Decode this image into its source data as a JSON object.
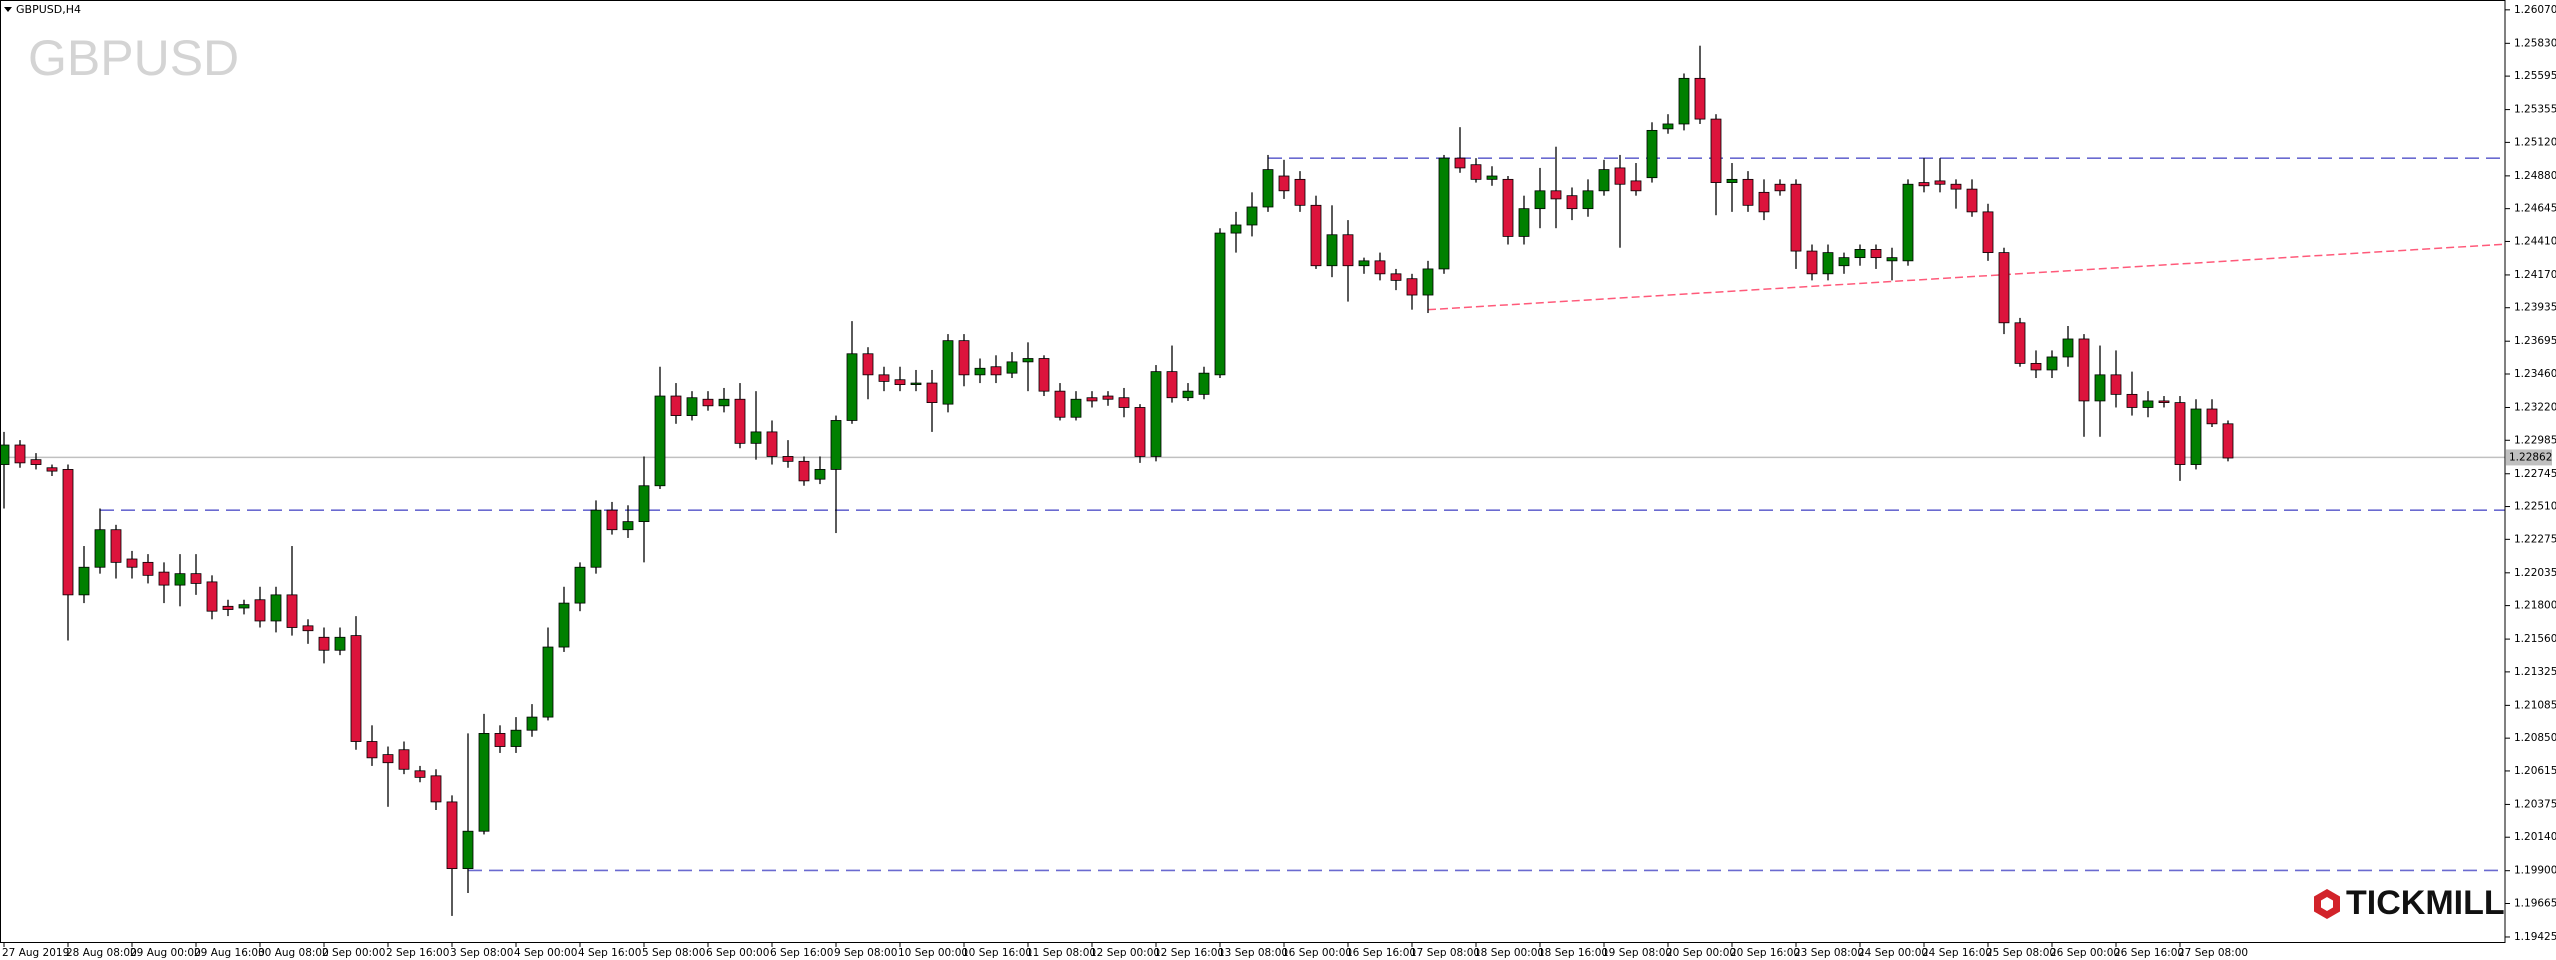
{
  "chart_data": {
    "type": "candlestick",
    "title": "GBPUSD,H4",
    "watermark": "GBPUSD",
    "brand": "TICKMILL",
    "categories": [
      "27 Aug 2019",
      null,
      null,
      null,
      "28 Aug 08:00",
      null,
      null,
      null,
      "29 Aug 00:00",
      null,
      null,
      null,
      "29 Aug 16:00",
      null,
      null,
      null,
      "30 Aug 08:00",
      null,
      null,
      null,
      "2 Sep 00:00",
      null,
      null,
      null,
      "2 Sep 16:00",
      null,
      null,
      null,
      "3 Sep 08:00",
      null,
      null,
      null,
      "4 Sep 00:00",
      null,
      null,
      null,
      "4 Sep 16:00",
      null,
      null,
      null,
      "5 Sep 08:00",
      null,
      null,
      null,
      "6 Sep 00:00",
      null,
      null,
      null,
      "6 Sep 16:00",
      null,
      null,
      null,
      "9 Sep 08:00",
      null,
      null,
      null,
      "10 Sep 00:00",
      null,
      null,
      null,
      "10 Sep 16:00",
      null,
      null,
      null,
      "11 Sep 08:00",
      null,
      null,
      null,
      "12 Sep 00:00",
      null,
      null,
      null,
      "12 Sep 16:00",
      null,
      null,
      null,
      "13 Sep 08:00",
      null,
      null,
      null,
      "16 Sep 00:00",
      null,
      null,
      null,
      "16 Sep 16:00",
      null,
      null,
      null,
      "17 Sep 08:00",
      null,
      null,
      null,
      "18 Sep 00:00",
      null,
      null,
      null,
      "18 Sep 16:00",
      null,
      null,
      null,
      "19 Sep 08:00",
      null,
      null,
      null,
      "20 Sep 00:00",
      null,
      null,
      null,
      "20 Sep 16:00",
      null,
      null,
      null,
      "23 Sep 08:00",
      null,
      null,
      null,
      "24 Sep 00:00",
      null,
      null,
      null,
      "24 Sep 16:00",
      null,
      null,
      null,
      "25 Sep 08:00",
      null,
      null,
      null,
      "26 Sep 00:00",
      null,
      null,
      null,
      "26 Sep 16:00",
      null,
      null,
      null,
      "27 Sep 08:00",
      null,
      null,
      null
    ],
    "open": [
      1.22811,
      1.22951,
      1.22846,
      1.22788,
      1.22776,
      1.21877,
      1.22075,
      1.22344,
      1.22134,
      1.2211,
      1.2204,
      1.21947,
      1.22029,
      1.2197,
      1.21795,
      1.21783,
      1.21842,
      1.2169,
      1.21877,
      1.21655,
      1.21573,
      1.2148,
      1.21585,
      1.20826,
      1.20732,
      1.20767,
      1.20616,
      1.2058,
      1.20393,
      1.19915,
      1.20183,
      1.20884,
      1.2079,
      1.20907,
      1.21001,
      1.21503,
      1.21818,
      1.22075,
      1.22484,
      1.22344,
      1.22402,
      1.22659,
      1.23302,
      1.23162,
      1.23279,
      1.23232,
      1.23279,
      1.22963,
      1.23045,
      1.22869,
      1.22834,
      1.22706,
      1.22776,
      1.23127,
      1.23605,
      1.23454,
      1.23419,
      1.23384,
      1.23395,
      1.23244,
      1.23699,
      1.23454,
      1.23512,
      1.23466,
      1.23547,
      1.23571,
      1.23337,
      1.2315,
      1.2329,
      1.23302,
      1.2329,
      1.2322,
      1.22869,
      1.23477,
      1.2329,
      1.23314,
      1.23454,
      1.2447,
      1.24528,
      1.24657,
      1.24879,
      1.24855,
      1.24669,
      1.24236,
      1.24458,
      1.24236,
      1.24271,
      1.24178,
      1.24143,
      1.24026,
      1.24213,
      1.25007,
      1.2496,
      1.24855,
      1.24855,
      1.24446,
      1.24645,
      1.24773,
      1.24738,
      1.24645,
      1.24773,
      1.24937,
      1.24844,
      1.24867,
      1.25217,
      1.25252,
      1.25579,
      1.25287,
      1.24832,
      1.24855,
      1.24762,
      1.2482,
      1.2482,
      1.24341,
      1.24178,
      1.24236,
      1.24294,
      1.24353,
      1.24271,
      1.24271,
      1.24832,
      1.24844,
      1.2482,
      1.24785,
      1.24622,
      1.2433,
      1.23827,
      1.23536,
      1.23489,
      1.23582,
      1.23711,
      1.23267,
      1.23454,
      1.23314,
      1.2322,
      1.23267,
      1.23255,
      1.22811,
      1.23209,
      1.23103
    ],
    "high": [
      1.23045,
      1.22986,
      1.22893,
      1.22811,
      1.22811,
      1.22227,
      1.22496,
      1.22379,
      1.22192,
      1.22169,
      1.2211,
      1.22169,
      1.22169,
      1.22017,
      1.21842,
      1.21842,
      1.21935,
      1.21935,
      1.22227,
      1.21702,
      1.21643,
      1.21643,
      1.21725,
      1.20942,
      1.2079,
      1.20826,
      1.20651,
      1.20627,
      1.2044,
      1.20884,
      1.21024,
      1.20942,
      1.21001,
      1.21094,
      1.21643,
      1.21935,
      1.2211,
      1.22554,
      1.22543,
      1.22519,
      1.22869,
      1.23512,
      1.23395,
      1.23337,
      1.23337,
      1.2336,
      1.23395,
      1.23337,
      1.23127,
      1.22986,
      1.22869,
      1.22869,
      1.23162,
      1.23839,
      1.23652,
      1.23512,
      1.23512,
      1.23489,
      1.23489,
      1.23746,
      1.23746,
      1.23571,
      1.23594,
      1.23617,
      1.23687,
      1.23594,
      1.23395,
      1.23337,
      1.23337,
      1.23337,
      1.2336,
      1.23244,
      1.23524,
      1.23664,
      1.23395,
      1.23512,
      1.24505,
      1.24622,
      1.24762,
      1.2503,
      1.24995,
      1.24914,
      1.24738,
      1.24669,
      1.24563,
      1.24294,
      1.2433,
      1.24213,
      1.24178,
      1.24271,
      1.2503,
      1.25229,
      1.25007,
      1.24949,
      1.24879,
      1.24738,
      1.24937,
      1.25089,
      1.24797,
      1.24855,
      1.24995,
      1.2503,
      1.24972,
      1.25264,
      1.25322,
      1.25614,
      1.25813,
      1.25322,
      1.24972,
      1.24914,
      1.24855,
      1.24855,
      1.24855,
      1.24388,
      1.24388,
      1.2433,
      1.24388,
      1.24388,
      1.24365,
      1.24855,
      1.25007,
      1.25007,
      1.24855,
      1.24855,
      1.2468,
      1.24365,
      1.23862,
      1.23629,
      1.23629,
      1.23804,
      1.23746,
      1.23664,
      1.23629,
      1.23477,
      1.23337,
      1.23302,
      1.23302,
      1.23279,
      1.23279,
      1.23127
    ],
    "low": [
      1.22496,
      1.22788,
      1.22776,
      1.22729,
      1.2155,
      1.21818,
      1.22029,
      1.21994,
      1.21994,
      1.21959,
      1.21818,
      1.21795,
      1.21877,
      1.21702,
      1.21725,
      1.21737,
      1.21643,
      1.21608,
      1.21585,
      1.21526,
      1.21386,
      1.21445,
      1.20767,
      1.20651,
      1.20358,
      1.20592,
      1.20534,
      1.20335,
      1.19576,
      1.1974,
      1.2016,
      1.20744,
      1.20744,
      1.2086,
      1.20977,
      1.21468,
      1.2176,
      1.22029,
      1.22309,
      1.22285,
      1.2211,
      1.22636,
      1.23103,
      1.23127,
      1.23197,
      1.23185,
      1.22928,
      1.22846,
      1.22811,
      1.22788,
      1.22659,
      1.22671,
      1.2232,
      1.23103,
      1.23279,
      1.23337,
      1.23337,
      1.23337,
      1.23045,
      1.23185,
      1.23372,
      1.23395,
      1.23395,
      1.23431,
      1.23337,
      1.23302,
      1.23127,
      1.23127,
      1.2322,
      1.23232,
      1.2315,
      1.22823,
      1.22834,
      1.23255,
      1.23267,
      1.23279,
      1.23431,
      1.2433,
      1.24446,
      1.24622,
      1.24715,
      1.24622,
      1.24213,
      1.24154,
      1.23979,
      1.24178,
      1.24131,
      1.24061,
      1.23921,
      1.23897,
      1.24178,
      1.24902,
      1.24832,
      1.24809,
      1.24388,
      1.24388,
      1.24505,
      1.24505,
      1.24563,
      1.24587,
      1.24738,
      1.24365,
      1.24738,
      1.24832,
      1.25182,
      1.25206,
      1.25252,
      1.24598,
      1.24622,
      1.24622,
      1.24563,
      1.24738,
      1.24213,
      1.24131,
      1.24131,
      1.24178,
      1.24236,
      1.24213,
      1.24131,
      1.24236,
      1.24762,
      1.24762,
      1.24645,
      1.24587,
      1.24271,
      1.23746,
      1.23512,
      1.23431,
      1.23431,
      1.23512,
      1.2301,
      1.2301,
      1.2322,
      1.23162,
      1.2315,
      1.2322,
      1.22694,
      1.22776,
      1.2308,
      1.22834
    ],
    "close": [
      1.22951,
      1.22823,
      1.22811,
      1.22764,
      1.21877,
      1.22075,
      1.22344,
      1.2211,
      1.22075,
      1.22017,
      1.21947,
      1.22029,
      1.21959,
      1.2176,
      1.21772,
      1.21807,
      1.2169,
      1.21877,
      1.21643,
      1.2162,
      1.2148,
      1.21573,
      1.20826,
      1.20709,
      1.20674,
      1.20627,
      1.20569,
      1.20393,
      1.19915,
      1.20183,
      1.20884,
      1.2079,
      1.20907,
      1.21001,
      1.21503,
      1.21818,
      1.22075,
      1.22484,
      1.22344,
      1.22402,
      1.22659,
      1.23302,
      1.23162,
      1.2329,
      1.23232,
      1.23279,
      1.22963,
      1.23045,
      1.22869,
      1.22834,
      1.22694,
      1.22776,
      1.23127,
      1.23605,
      1.23454,
      1.23407,
      1.23384,
      1.23395,
      1.23255,
      1.23699,
      1.23454,
      1.23501,
      1.23454,
      1.23547,
      1.23571,
      1.23337,
      1.2315,
      1.23279,
      1.23267,
      1.23279,
      1.2322,
      1.22869,
      1.23477,
      1.2329,
      1.23337,
      1.23466,
      1.2447,
      1.24528,
      1.24657,
      1.24925,
      1.24773,
      1.24669,
      1.24236,
      1.24458,
      1.24236,
      1.24271,
      1.24178,
      1.24131,
      1.24026,
      1.24213,
      1.25007,
      1.24937,
      1.24855,
      1.24879,
      1.24446,
      1.24645,
      1.24773,
      1.24715,
      1.24645,
      1.24773,
      1.24925,
      1.2482,
      1.24773,
      1.25206,
      1.25252,
      1.25579,
      1.25287,
      1.24832,
      1.24855,
      1.24669,
      1.24622,
      1.24773,
      1.24341,
      1.24178,
      1.2433,
      1.24294,
      1.24353,
      1.24294,
      1.24294,
      1.2482,
      1.24809,
      1.2482,
      1.24785,
      1.24622,
      1.2433,
      1.23827,
      1.23536,
      1.23489,
      1.23582,
      1.23711,
      1.23267,
      1.23454,
      1.23314,
      1.2322,
      1.23267,
      1.23255,
      1.22811,
      1.23209,
      1.23103,
      1.22858
    ],
    "up_color": "#008000",
    "down_color": "#dc143c",
    "ylim": [
      1.19389,
      1.26119
    ],
    "yticks": [
      {
        "value": 1.2607,
        "label": "1.26070"
      },
      {
        "value": 1.2583,
        "label": "1.25830"
      },
      1.25595,
      1.25355,
      {
        "value": 1.2512,
        "label": "1.25120"
      },
      {
        "value": 1.2488,
        "label": "1.24880"
      },
      1.24645,
      {
        "value": 1.2441,
        "label": "1.24410"
      },
      {
        "value": 1.2417,
        "label": "1.24170"
      },
      1.23935,
      1.23695,
      {
        "value": 1.2346,
        "label": "1.23460"
      },
      {
        "value": 1.2322,
        "label": "1.23220"
      },
      1.22985,
      1.22745,
      {
        "value": 1.2251,
        "label": "1.22510"
      },
      1.22275,
      1.22035,
      {
        "value": 1.218,
        "label": "1.21800"
      },
      {
        "value": 1.2156,
        "label": "1.21560"
      },
      1.21325,
      1.21085,
      {
        "value": 1.2085,
        "label": "1.20850"
      },
      1.20615,
      1.20375,
      {
        "value": 1.2014,
        "label": "1.20140"
      },
      {
        "value": 1.199,
        "label": "1.19900"
      },
      1.19665,
      1.19425
    ],
    "grid": false,
    "last_price": 1.22862,
    "last_price_color": "#c0c0c0",
    "hlines": [
      {
        "value": 1.25007,
        "from": 79
      },
      {
        "value": 1.22484,
        "from": 6
      },
      {
        "value": 1.19902,
        "from": 29
      }
    ],
    "hline_color": "#6a6ad0",
    "trendline": {
      "color": "#ff5a7a",
      "points": [
        {
          "x": 89,
          "y": 1.23921
        },
        {
          "x": 156,
          "y": 1.24388
        }
      ]
    }
  }
}
